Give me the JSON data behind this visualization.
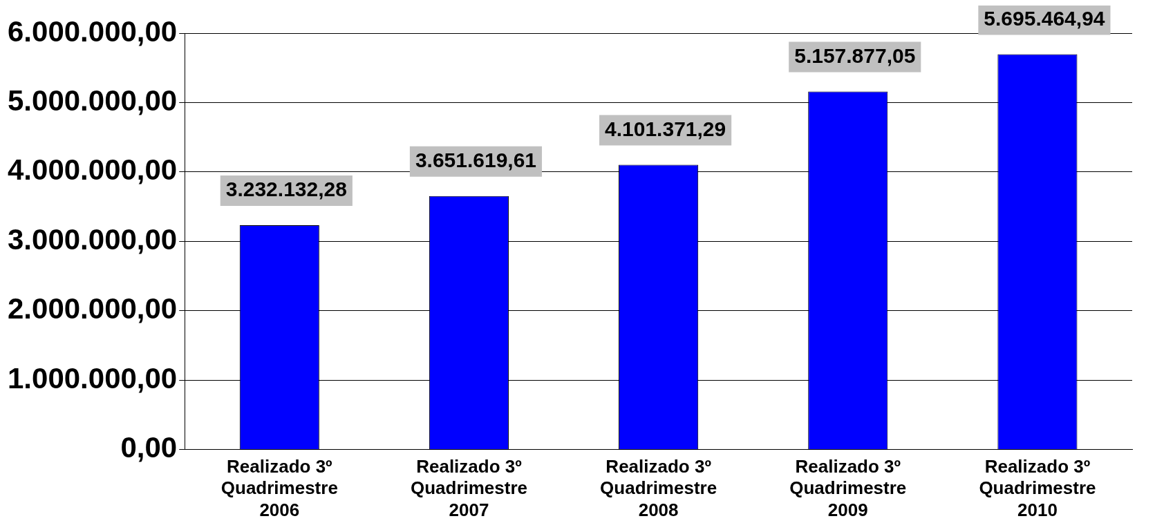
{
  "chart_data": {
    "type": "bar",
    "categories": [
      "Realizado 3º Quadrimestre 2006",
      "Realizado 3º Quadrimestre 2007",
      "Realizado 3º Quadrimestre 2008",
      "Realizado 3º Quadrimestre 2009",
      "Realizado 3º Quadrimestre 2010"
    ],
    "values": [
      3232132.28,
      3651619.61,
      4101371.29,
      5157877.05,
      5695464.94
    ],
    "value_labels": [
      "3.232.132,28",
      "3.651.619,61",
      "4.101.371,29",
      "5.157.877,05",
      "5.695.464,94"
    ],
    "color": "#0000ff",
    "ylim": [
      0,
      6000000
    ],
    "yticks": [
      {
        "value": 0,
        "label": "0,00"
      },
      {
        "value": 1000000,
        "label": "1.000.000,00"
      },
      {
        "value": 2000000,
        "label": "2.000.000,00"
      },
      {
        "value": 3000000,
        "label": "3.000.000,00"
      },
      {
        "value": 4000000,
        "label": "4.000.000,00"
      },
      {
        "value": 5000000,
        "label": "5.000.000,00"
      },
      {
        "value": 6000000,
        "label": "6.000.000,00"
      }
    ],
    "grid": "y",
    "legend": false
  }
}
